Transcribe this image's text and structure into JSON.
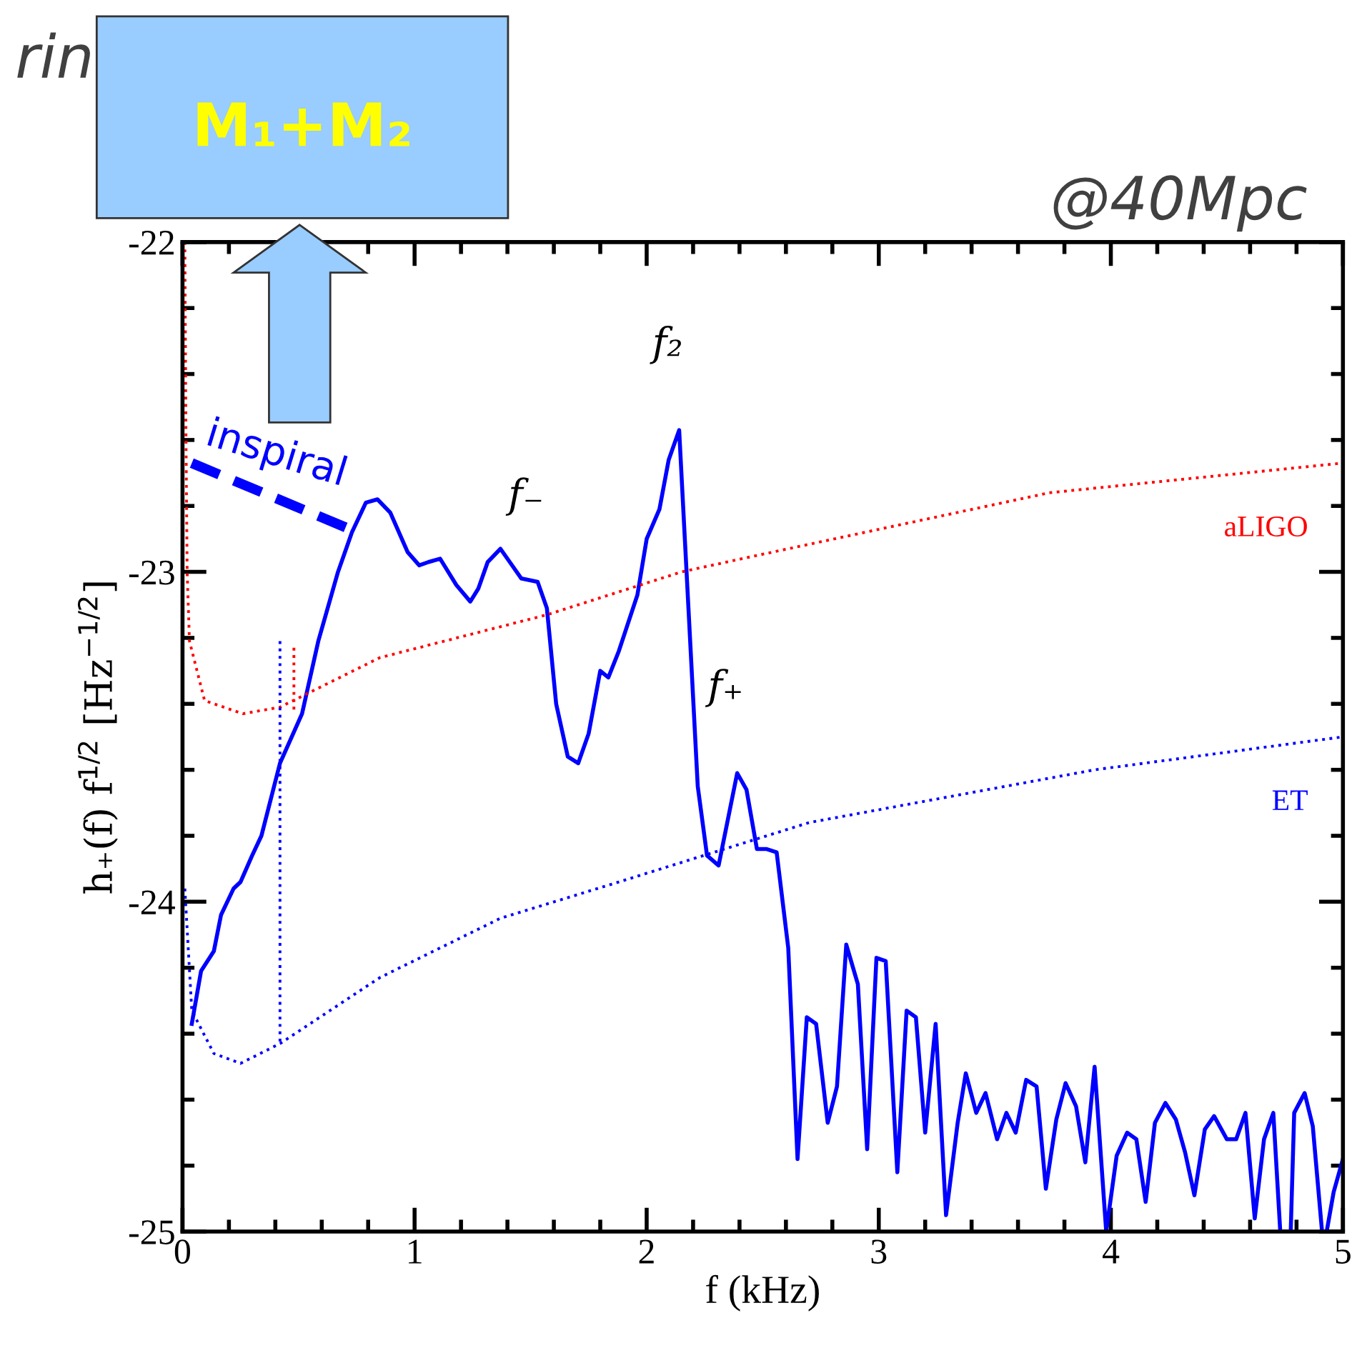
{
  "chart_data": {
    "type": "line",
    "xlabel": "f (kHz)",
    "ylabel": "h₊(f) f$^{1/2}$ [Hz$^{−1/2}$]",
    "xlim": [
      0,
      5
    ],
    "ylim": [
      -25,
      -22
    ],
    "xticks": [
      0,
      1,
      2,
      3,
      4,
      5
    ],
    "yticks": [
      -25,
      -24,
      -23,
      -22
    ],
    "grid": false,
    "series": [
      {
        "color": "#0000ff",
        "line_style": "solid",
        "x": [
          0.04,
          0.08,
          0.135,
          0.166,
          0.22,
          0.25,
          0.3,
          0.34,
          0.42,
          0.515,
          0.585,
          0.67,
          0.73,
          0.79,
          0.84,
          0.895,
          0.97,
          1.02,
          1.06,
          1.11,
          1.18,
          1.24,
          1.275,
          1.315,
          1.37,
          1.41,
          1.46,
          1.53,
          1.57,
          1.61,
          1.66,
          1.705,
          1.75,
          1.8,
          1.835,
          1.88,
          1.96,
          2.0,
          2.055,
          2.095,
          2.14,
          2.18,
          2.22,
          2.26,
          2.31,
          2.39,
          2.43,
          2.475,
          2.515,
          2.56,
          2.61,
          2.65,
          2.69,
          2.73,
          2.78,
          2.82,
          2.86,
          2.91,
          2.95,
          2.99,
          3.03,
          3.08,
          3.12,
          3.16,
          3.2,
          3.245,
          3.29,
          3.34,
          3.375,
          3.42,
          3.46,
          3.51,
          3.55,
          3.59,
          3.635,
          3.68,
          3.72,
          3.765,
          3.805,
          3.85,
          3.89,
          3.93,
          3.98,
          4.025,
          4.07,
          4.11,
          4.15,
          4.19,
          4.235,
          4.28,
          4.32,
          4.36,
          4.405,
          4.445,
          4.5,
          4.54,
          4.58,
          4.62,
          4.66,
          4.7,
          4.73,
          4.775,
          4.79,
          4.835,
          4.87,
          4.91,
          4.93,
          4.96,
          5.0
        ],
        "values": [
          -24.37,
          -24.21,
          -24.15,
          -24.04,
          -23.96,
          -23.94,
          -23.86,
          -23.8,
          -23.58,
          -23.43,
          -23.21,
          -23.0,
          -22.88,
          -22.79,
          -22.78,
          -22.82,
          -22.94,
          -22.98,
          -22.97,
          -22.96,
          -23.04,
          -23.09,
          -23.05,
          -22.97,
          -22.93,
          -22.97,
          -23.02,
          -23.03,
          -23.11,
          -23.4,
          -23.56,
          -23.58,
          -23.49,
          -23.3,
          -23.32,
          -23.24,
          -23.07,
          -22.9,
          -22.81,
          -22.66,
          -22.57,
          -23.11,
          -23.65,
          -23.86,
          -23.89,
          -23.61,
          -23.66,
          -23.84,
          -23.84,
          -23.85,
          -24.14,
          -24.78,
          -24.35,
          -24.37,
          -24.67,
          -24.56,
          -24.13,
          -24.25,
          -24.75,
          -24.17,
          -24.18,
          -24.82,
          -24.33,
          -24.35,
          -24.7,
          -24.37,
          -24.95,
          -24.67,
          -24.52,
          -24.64,
          -24.58,
          -24.72,
          -24.64,
          -24.7,
          -24.54,
          -24.56,
          -24.87,
          -24.66,
          -24.55,
          -24.62,
          -24.79,
          -24.5,
          -25.0,
          -24.77,
          -24.7,
          -24.72,
          -24.91,
          -24.67,
          -24.61,
          -24.66,
          -24.76,
          -24.89,
          -24.69,
          -24.65,
          -24.72,
          -24.72,
          -24.64,
          -24.96,
          -24.72,
          -24.64,
          -25.0,
          -25.0,
          -24.64,
          -24.58,
          -24.68,
          -25.0,
          -25.0,
          -24.88,
          -24.78
        ]
      },
      {
        "name": "aLIGO",
        "color": "#ff0000",
        "line_style": "dotted",
        "x": [
          0.01,
          0.015,
          0.02,
          0.03,
          0.095,
          0.26,
          0.42,
          0.85,
          1.57,
          2.15,
          2.41,
          3.735,
          5.0
        ],
        "values": [
          -22.0,
          -22.6,
          -23.0,
          -23.21,
          -23.39,
          -23.43,
          -23.41,
          -23.26,
          -23.13,
          -23.0,
          -22.96,
          -22.76,
          -22.67
        ]
      },
      {
        "name": "ET",
        "color": "#0000ff",
        "line_style": "dotted",
        "x": [
          0.01,
          0.04,
          0.135,
          0.25,
          0.42,
          0.85,
          1.37,
          1.88,
          2.29,
          2.7,
          3.93,
          5.0
        ],
        "values": [
          -23.96,
          -24.33,
          -24.46,
          -24.49,
          -24.43,
          -24.23,
          -24.05,
          -23.94,
          -23.85,
          -23.76,
          -23.6,
          -23.5
        ]
      },
      {
        "color": "#0000ff",
        "line_style": "dotted",
        "x": [
          0.42,
          0.42
        ],
        "values": [
          -23.21,
          -24.43
        ]
      },
      {
        "color": "#ff0000",
        "line_style": "dotted",
        "x": [
          0.48,
          0.48
        ],
        "values": [
          -23.23,
          -23.42
        ]
      },
      {
        "name": "inspiral",
        "color": "#0000ff",
        "line_style": "dashed",
        "x": [
          0.04,
          0.72
        ],
        "values": [
          -22.67,
          -22.87
        ]
      }
    ],
    "annotations": [
      {
        "text": "f₂",
        "x": 2.14,
        "y": -22.57
      },
      {
        "text": "f₋",
        "x": 1.53,
        "y": -23.03
      },
      {
        "text": "f₊",
        "x": 2.39,
        "y": -23.61
      },
      "@40Mpc",
      "M₁+M₂",
      "rin"
    ]
  }
}
